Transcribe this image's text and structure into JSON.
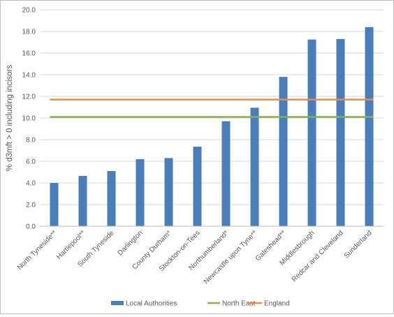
{
  "chart_data": {
    "type": "bar",
    "title": "",
    "xlabel": "",
    "ylabel": "% d3mft > 0 including incisors",
    "ylim": [
      0,
      20
    ],
    "yticks": [
      "0.0",
      "2.0",
      "4.0",
      "6.0",
      "8.0",
      "10.0",
      "12.0",
      "14.0",
      "16.0",
      "18.0",
      "20.0"
    ],
    "grid": true,
    "legend_position": "bottom",
    "categories": [
      "North Tyneside**",
      "Hartlepool**",
      "South Tyneside",
      "Darlington",
      "County Durham*",
      "Stockton-on-Tees",
      "Northumberland*",
      "Newcastle upon Tyne**",
      "Gateshead**",
      "Middlesbrough",
      "Redcar and Cleveland",
      "Sunderland"
    ],
    "series": [
      {
        "name": "Local Authorities",
        "kind": "bar",
        "color": "#4a7ebb",
        "values": [
          4.0,
          4.65,
          5.1,
          6.2,
          6.3,
          7.35,
          9.7,
          10.95,
          13.8,
          17.25,
          17.3,
          18.4
        ]
      },
      {
        "name": "North East",
        "kind": "reference-line",
        "color": "#8cb04c",
        "value": 10.1
      },
      {
        "name": "England",
        "kind": "reference-line",
        "color": "#f08a3c",
        "value": 11.7
      }
    ]
  }
}
